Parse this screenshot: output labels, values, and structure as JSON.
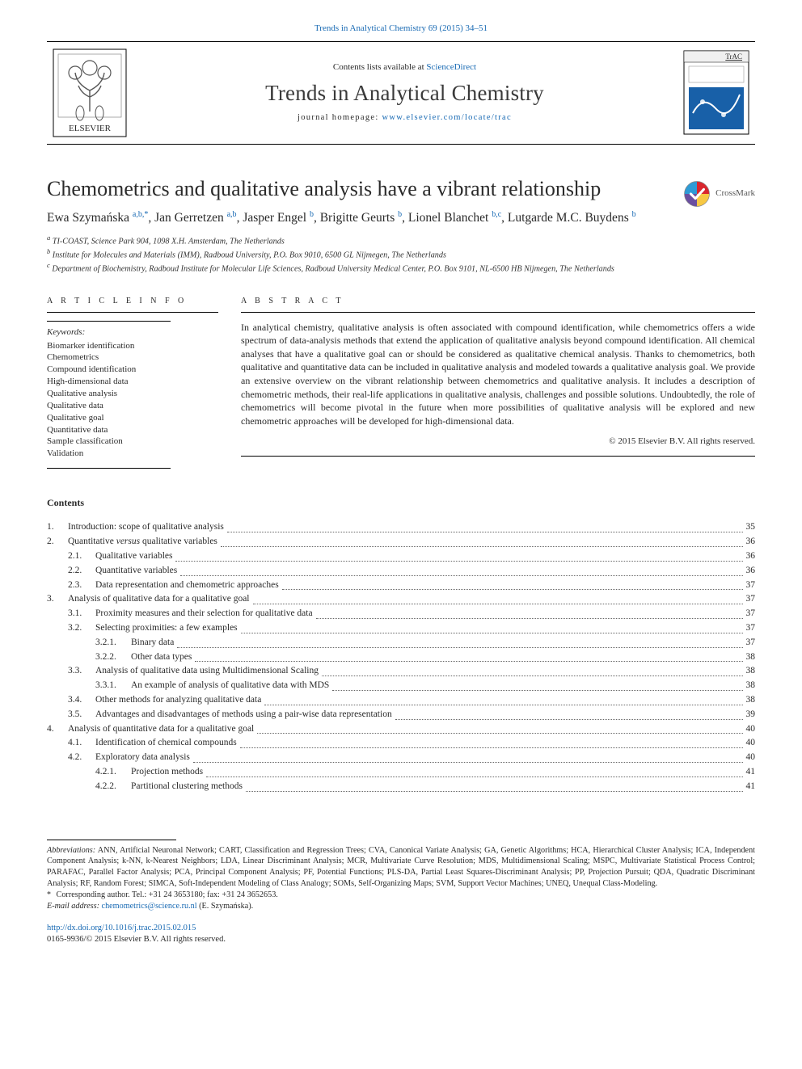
{
  "topcite": {
    "text": "Trends in Analytical Chemistry 69 (2015) 34–51",
    "href": "#"
  },
  "header": {
    "contents_prefix": "Contents lists available at ",
    "contents_link_text": "ScienceDirect",
    "contents_link_href": "#",
    "journal_title": "Trends in Analytical Chemistry",
    "homepage_label": "journal homepage: ",
    "homepage_link_text": "www.elsevier.com/locate/trac",
    "homepage_link_href": "#",
    "publisher_logo_alt": "Elsevier tree logo",
    "cover_alt": "TrAC journal cover thumbnail",
    "cover_brand": "TrAC"
  },
  "crossmark_label": "CrossMark",
  "article": {
    "title": "Chemometrics and qualitative analysis have a vibrant relationship",
    "authors_html_parts": [
      {
        "name": "Ewa Szymańska ",
        "aff": "a,b,",
        "star": "*"
      },
      {
        "name": ", Jan Gerretzen ",
        "aff": "a,b"
      },
      {
        "name": ", Jasper Engel ",
        "aff": "b"
      },
      {
        "name": ", Brigitte Geurts ",
        "aff": "b"
      },
      {
        "name": ", Lionel Blanchet ",
        "aff": "b,c"
      },
      {
        "name": ", Lutgarde M.C. Buydens ",
        "aff": "b"
      }
    ],
    "affiliations": [
      {
        "sup": "a",
        "text": " TI-COAST, Science Park 904, 1098 X.H. Amsterdam, The Netherlands"
      },
      {
        "sup": "b",
        "text": " Institute for Molecules and Materials (IMM), Radboud University, P.O. Box 9010, 6500 GL Nijmegen, The Netherlands"
      },
      {
        "sup": "c",
        "text": " Department of Biochemistry, Radboud Institute for Molecular Life Sciences, Radboud University Medical Center, P.O. Box 9101, NL-6500 HB Nijmegen, The Netherlands"
      }
    ]
  },
  "info": {
    "heading": "A R T I C L E   I N F O",
    "keywords_heading": "Keywords:",
    "keywords": [
      "Biomarker identification",
      "Chemometrics",
      "Compound identification",
      "High-dimensional data",
      "Qualitative analysis",
      "Qualitative data",
      "Qualitative goal",
      "Quantitative data",
      "Sample classification",
      "Validation"
    ]
  },
  "abstract": {
    "heading": "A B S T R A C T",
    "text": "In analytical chemistry, qualitative analysis is often associated with compound identification, while chemometrics offers a wide spectrum of data-analysis methods that extend the application of qualitative analysis beyond compound identification. All chemical analyses that have a qualitative goal can or should be considered as qualitative chemical analysis. Thanks to chemometrics, both qualitative and quantitative data can be included in qualitative analysis and modeled towards a qualitative analysis goal. We provide an extensive overview on the vibrant relationship between chemometrics and qualitative analysis. It includes a description of chemometric methods, their real-life applications in qualitative analysis, challenges and possible solutions. Undoubtedly, the role of chemometrics will become pivotal in the future when more possibilities of qualitative analysis will be explored and new chemometric approaches will be developed for high-dimensional data.",
    "copyright": "© 2015 Elsevier B.V. All rights reserved."
  },
  "contents": {
    "heading": "Contents",
    "items": [
      {
        "level": 0,
        "num": "1.",
        "title": "Introduction: scope of qualitative analysis",
        "page": "35"
      },
      {
        "level": 0,
        "num": "2.",
        "title_pre": "Quantitative ",
        "title_it": "versus",
        "title_post": " qualitative variables",
        "page": "36"
      },
      {
        "level": 1,
        "num": "2.1.",
        "title": "Qualitative variables",
        "page": "36"
      },
      {
        "level": 1,
        "num": "2.2.",
        "title": "Quantitative variables",
        "page": "36"
      },
      {
        "level": 1,
        "num": "2.3.",
        "title": "Data representation and chemometric approaches",
        "page": "37"
      },
      {
        "level": 0,
        "num": "3.",
        "title": "Analysis of qualitative data for a qualitative goal",
        "page": "37"
      },
      {
        "level": 1,
        "num": "3.1.",
        "title": "Proximity measures and their selection for qualitative data",
        "page": "37"
      },
      {
        "level": 1,
        "num": "3.2.",
        "title": "Selecting proximities: a few examples",
        "page": "37"
      },
      {
        "level": 2,
        "num": "3.2.1.",
        "title": "Binary data",
        "page": "37"
      },
      {
        "level": 2,
        "num": "3.2.2.",
        "title": "Other data types",
        "page": "38"
      },
      {
        "level": 1,
        "num": "3.3.",
        "title": "Analysis of qualitative data using Multidimensional Scaling",
        "page": "38"
      },
      {
        "level": 2,
        "num": "3.3.1.",
        "title": "An example of analysis of qualitative data with MDS",
        "page": "38"
      },
      {
        "level": 1,
        "num": "3.4.",
        "title": "Other methods for analyzing qualitative data",
        "page": "38"
      },
      {
        "level": 1,
        "num": "3.5.",
        "title": "Advantages and disadvantages of methods using a pair-wise data representation",
        "page": "39"
      },
      {
        "level": 0,
        "num": "4.",
        "title": "Analysis of quantitative data for a qualitative goal",
        "page": "40"
      },
      {
        "level": 1,
        "num": "4.1.",
        "title": "Identification of chemical compounds",
        "page": "40"
      },
      {
        "level": 1,
        "num": "4.2.",
        "title": "Exploratory data analysis",
        "page": "40"
      },
      {
        "level": 2,
        "num": "4.2.1.",
        "title": "Projection methods",
        "page": "41"
      },
      {
        "level": 2,
        "num": "4.2.2.",
        "title": "Partitional clustering methods",
        "page": "41"
      }
    ]
  },
  "footnotes": {
    "abbrev_label": "Abbreviations:",
    "abbrev_text": " ANN, Artificial Neuronal Network; CART, Classification and Regression Trees; CVA, Canonical Variate Analysis; GA, Genetic Algorithms; HCA, Hierarchical Cluster Analysis; ICA, Independent Component Analysis; k-NN, k-Nearest Neighbors; LDA, Linear Discriminant Analysis; MCR, Multivariate Curve Resolution; MDS, Multidimensional Scaling; MSPC, Multivariate Statistical Process Control; PARAFAC, Parallel Factor Analysis; PCA, Principal Component Analysis; PF, Potential Functions; PLS-DA, Partial Least Squares-Discriminant Analysis; PP, Projection Pursuit; QDA, Quadratic Discriminant Analysis; RF, Random Forest; SIMCA, Soft-Independent Modeling of Class Analogy; SOMs, Self-Organizing Maps; SVM, Support Vector Machines; UNEQ, Unequal Class-Modeling.",
    "corr_star": "*",
    "corr_text": " Corresponding author. Tel.: +31 24 3653180; fax: +31 24 3652653.",
    "email_label": "E-mail address:",
    "email_link_text": "chemometrics@science.ru.nl",
    "email_link_href": "#",
    "email_tail": " (E. Szymańska)."
  },
  "doi": {
    "link_text": "http://dx.doi.org/10.1016/j.trac.2015.02.015",
    "link_href": "#",
    "issn_line": "0165-9936/© 2015 Elsevier B.V. All rights reserved."
  },
  "colors": {
    "link": "#1769b3",
    "text": "#2a2a2a",
    "rule": "#000000",
    "elsevier_orange": "#f39b1e",
    "cover_accent": "#1860a8"
  }
}
